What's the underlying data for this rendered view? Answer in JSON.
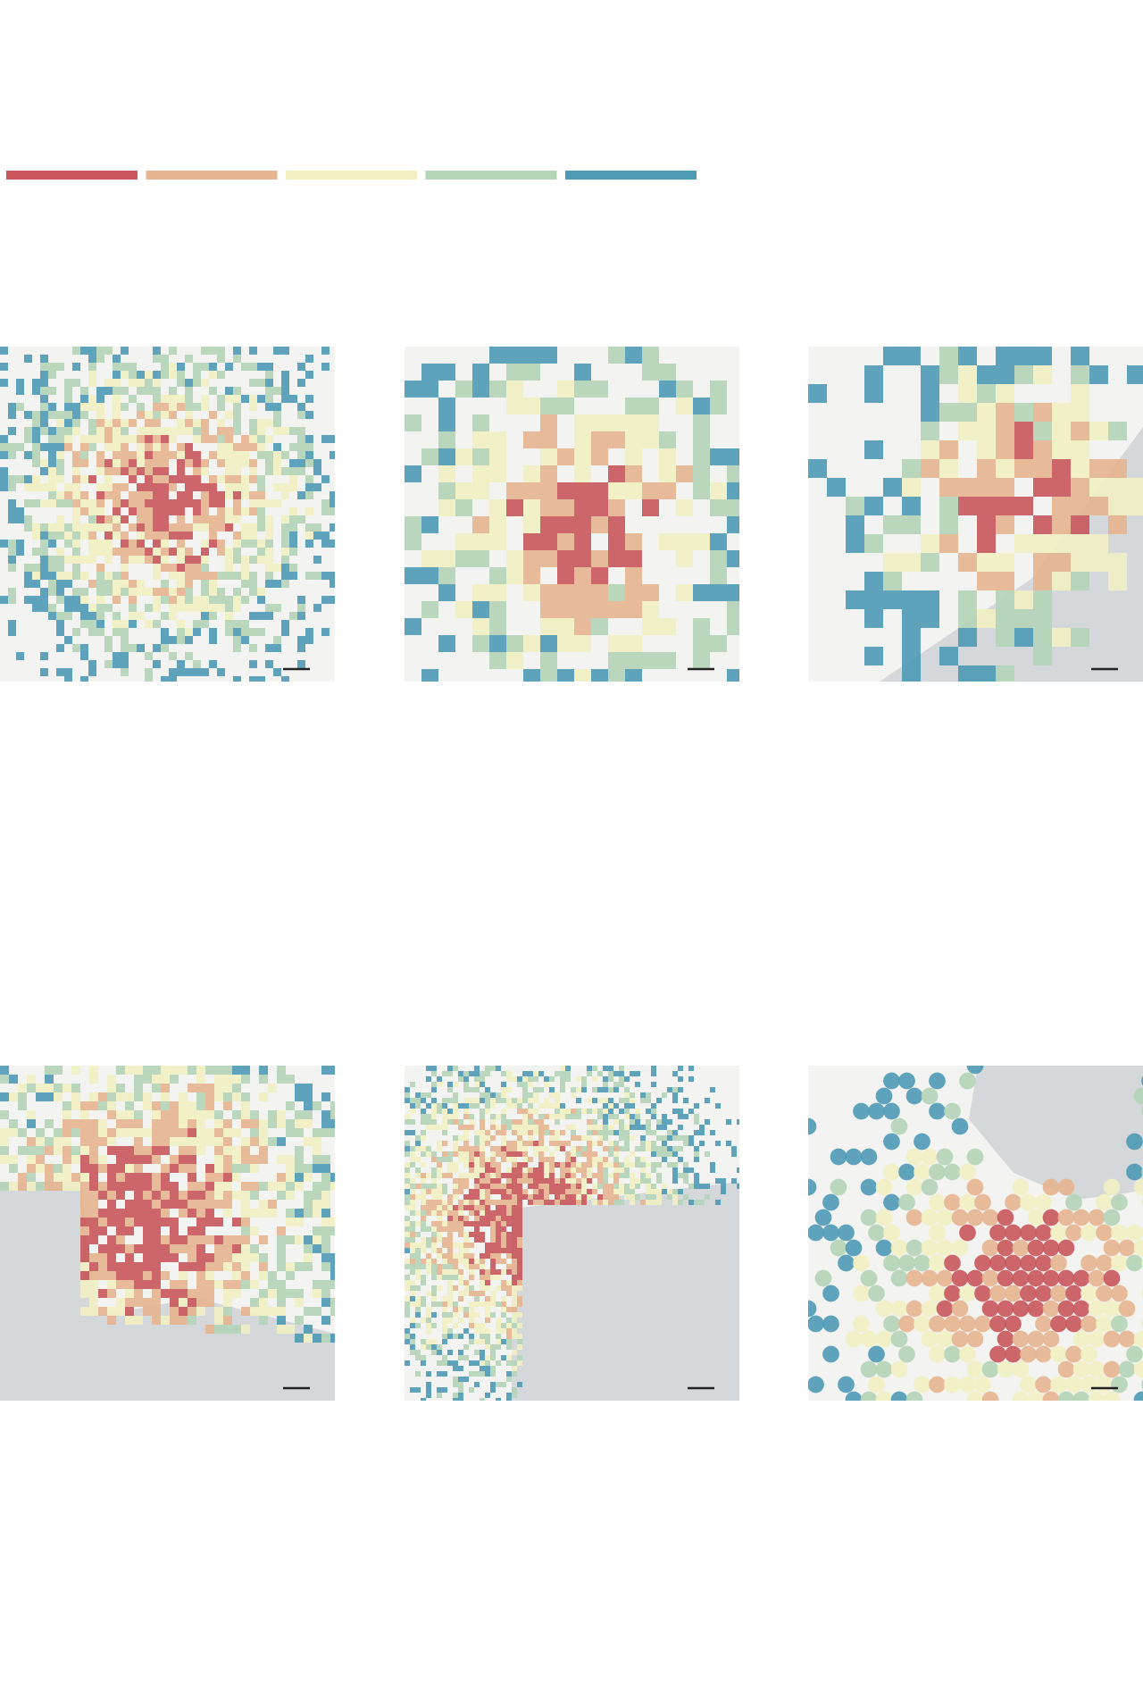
{
  "legend": {
    "colors": [
      "#c9565b",
      "#e6b58f",
      "#f2efc2",
      "#b4d4b8",
      "#4e9ab5"
    ]
  }
}
